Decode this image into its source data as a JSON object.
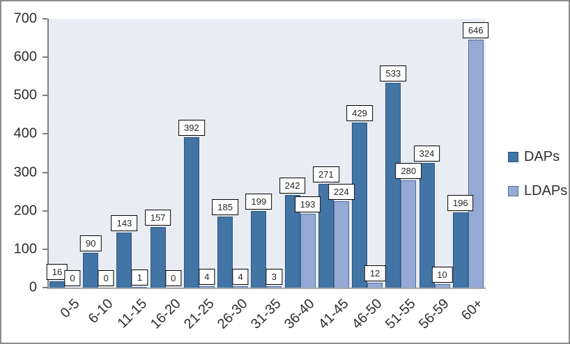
{
  "window": {
    "background": "#ffffff",
    "border_color": "#8a8a8a"
  },
  "chart_data": {
    "type": "bar",
    "categories": [
      "0-5",
      "6-10",
      "11-15",
      "16-20",
      "21-25",
      "26-30",
      "31-35",
      "36-40",
      "41-45",
      "46-50",
      "51-55",
      "56-59",
      "60+"
    ],
    "series": [
      {
        "name": "DAPs",
        "color": "#4374a6",
        "border_color": "#2e5680",
        "values": [
          16,
          90,
          143,
          157,
          392,
          185,
          199,
          242,
          271,
          429,
          533,
          324,
          196
        ]
      },
      {
        "name": "LDAPs",
        "color": "#95a9d4",
        "border_color": "#4d6c9c",
        "values": [
          0,
          0,
          1,
          0,
          4,
          4,
          3,
          193,
          224,
          12,
          280,
          10,
          646
        ]
      }
    ],
    "xlabel": "",
    "ylabel": "",
    "ylim": [
      0,
      700
    ],
    "y_ticks": [
      0,
      100,
      200,
      300,
      400,
      500,
      600,
      700
    ],
    "grid": false,
    "legend_position": "right",
    "plot_background": "#e9edf3",
    "data_labels": {
      "visible": true,
      "style": "boxed"
    }
  }
}
